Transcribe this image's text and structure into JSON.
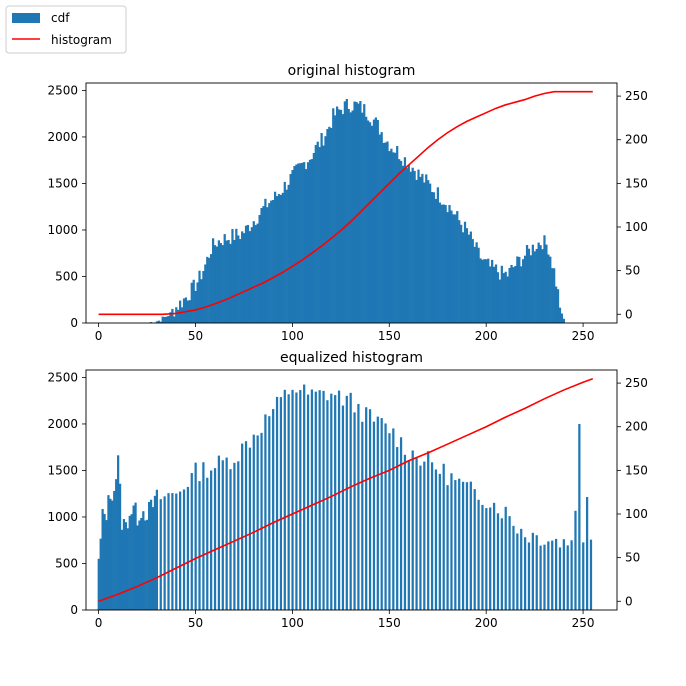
{
  "legend": {
    "placement": "figure-top-left",
    "entries": [
      {
        "label": "cdf",
        "color": "#1f77b4",
        "kind": "patch"
      },
      {
        "label": "histogram",
        "color": "#ff0000",
        "kind": "line"
      }
    ]
  },
  "chart_data": [
    {
      "type": "bar+line",
      "title": "original histogram",
      "xlim": [
        -6.5,
        267.5
      ],
      "ylim": [
        0,
        2580
      ],
      "y2lim": [
        -10,
        265
      ],
      "xticks": [
        0,
        50,
        100,
        150,
        200,
        250
      ],
      "yticks": [
        0,
        500,
        1000,
        1500,
        2000,
        2500
      ],
      "y2ticks": [
        0,
        50,
        100,
        150,
        200,
        250
      ],
      "bar_color": "#1f77b4",
      "line_color": "#ff0000",
      "bars": {
        "bin_width": 1,
        "mode": "dense",
        "anchor_points": [
          [
            0,
            0
          ],
          [
            25,
            0
          ],
          [
            28,
            10
          ],
          [
            31,
            25
          ],
          [
            34,
            60
          ],
          [
            37,
            100
          ],
          [
            40,
            170
          ],
          [
            43,
            230
          ],
          [
            46,
            300
          ],
          [
            49,
            380
          ],
          [
            52,
            480
          ],
          [
            55,
            620
          ],
          [
            58,
            800
          ],
          [
            61,
            870
          ],
          [
            64,
            900
          ],
          [
            67,
            920
          ],
          [
            70,
            940
          ],
          [
            73,
            950
          ],
          [
            76,
            1000
          ],
          [
            79,
            1080
          ],
          [
            82,
            1150
          ],
          [
            85,
            1230
          ],
          [
            88,
            1300
          ],
          [
            91,
            1350
          ],
          [
            94,
            1420
          ],
          [
            97,
            1500
          ],
          [
            100,
            1580
          ],
          [
            103,
            1650
          ],
          [
            106,
            1720
          ],
          [
            109,
            1780
          ],
          [
            112,
            1880
          ],
          [
            115,
            1960
          ],
          [
            118,
            2070
          ],
          [
            121,
            2220
          ],
          [
            124,
            2280
          ],
          [
            127,
            2330
          ],
          [
            130,
            2350
          ],
          [
            133,
            2340
          ],
          [
            136,
            2310
          ],
          [
            139,
            2260
          ],
          [
            142,
            2180
          ],
          [
            145,
            2090
          ],
          [
            148,
            1980
          ],
          [
            151,
            1900
          ],
          [
            154,
            1850
          ],
          [
            157,
            1780
          ],
          [
            160,
            1720
          ],
          [
            163,
            1650
          ],
          [
            166,
            1580
          ],
          [
            169,
            1520
          ],
          [
            172,
            1450
          ],
          [
            175,
            1390
          ],
          [
            178,
            1330
          ],
          [
            181,
            1250
          ],
          [
            184,
            1160
          ],
          [
            187,
            1070
          ],
          [
            190,
            990
          ],
          [
            193,
            870
          ],
          [
            196,
            740
          ],
          [
            199,
            650
          ],
          [
            202,
            600
          ],
          [
            205,
            570
          ],
          [
            208,
            530
          ],
          [
            211,
            520
          ],
          [
            214,
            600
          ],
          [
            217,
            670
          ],
          [
            220,
            730
          ],
          [
            223,
            790
          ],
          [
            226,
            850
          ],
          [
            229,
            880
          ],
          [
            232,
            820
          ],
          [
            235,
            560
          ],
          [
            237,
            320
          ],
          [
            239,
            80
          ],
          [
            241,
            0
          ],
          [
            255,
            0
          ]
        ],
        "jitter_amplitude": 90
      },
      "cdf_line": [
        [
          0,
          0
        ],
        [
          33,
          0
        ],
        [
          40,
          1
        ],
        [
          45,
          3
        ],
        [
          50,
          5
        ],
        [
          55,
          8
        ],
        [
          60,
          12
        ],
        [
          65,
          16
        ],
        [
          70,
          21
        ],
        [
          75,
          26
        ],
        [
          80,
          31
        ],
        [
          85,
          36
        ],
        [
          90,
          42
        ],
        [
          95,
          48
        ],
        [
          100,
          55
        ],
        [
          105,
          62
        ],
        [
          110,
          70
        ],
        [
          115,
          78
        ],
        [
          120,
          87
        ],
        [
          125,
          96
        ],
        [
          130,
          106
        ],
        [
          135,
          117
        ],
        [
          140,
          128
        ],
        [
          145,
          139
        ],
        [
          150,
          150
        ],
        [
          155,
          161
        ],
        [
          160,
          171
        ],
        [
          165,
          181
        ],
        [
          170,
          191
        ],
        [
          175,
          200
        ],
        [
          180,
          208
        ],
        [
          185,
          215
        ],
        [
          190,
          221
        ],
        [
          195,
          226
        ],
        [
          200,
          231
        ],
        [
          205,
          236
        ],
        [
          210,
          240
        ],
        [
          215,
          243
        ],
        [
          220,
          246
        ],
        [
          225,
          250
        ],
        [
          230,
          253
        ],
        [
          235,
          255
        ],
        [
          240,
          255
        ],
        [
          255,
          255
        ]
      ]
    },
    {
      "type": "bar+line",
      "title": "equalized histogram",
      "xlim": [
        -6.5,
        267.5
      ],
      "ylim": [
        0,
        2580
      ],
      "y2lim": [
        -10,
        265
      ],
      "xticks": [
        0,
        50,
        100,
        150,
        200,
        250
      ],
      "yticks": [
        0,
        500,
        1000,
        1500,
        2000,
        2500
      ],
      "y2ticks": [
        0,
        50,
        100,
        150,
        200,
        250
      ],
      "bar_color": "#1f77b4",
      "line_color": "#ff0000",
      "bars": {
        "bin_width": 1,
        "mode": "sparse",
        "dense_until": 30,
        "gap_pattern_after": 1,
        "anchor_points": [
          [
            0,
            500
          ],
          [
            2,
            1000
          ],
          [
            4,
            1050
          ],
          [
            6,
            1250
          ],
          [
            8,
            1300
          ],
          [
            10,
            1600
          ],
          [
            12,
            950
          ],
          [
            14,
            900
          ],
          [
            16,
            1050
          ],
          [
            18,
            1100
          ],
          [
            20,
            1000
          ],
          [
            22,
            1080
          ],
          [
            24,
            1050
          ],
          [
            26,
            1070
          ],
          [
            28,
            1130
          ],
          [
            30,
            1200
          ],
          [
            40,
            1250
          ],
          [
            50,
            1480
          ],
          [
            60,
            1550
          ],
          [
            70,
            1640
          ],
          [
            80,
            1880
          ],
          [
            90,
            2150
          ],
          [
            100,
            2400
          ],
          [
            110,
            2300
          ],
          [
            120,
            2330
          ],
          [
            130,
            2240
          ],
          [
            140,
            2060
          ],
          [
            150,
            1950
          ],
          [
            160,
            1700
          ],
          [
            170,
            1600
          ],
          [
            180,
            1450
          ],
          [
            190,
            1300
          ],
          [
            200,
            1200
          ],
          [
            210,
            1050
          ],
          [
            215,
            920
          ],
          [
            220,
            820
          ],
          [
            230,
            780
          ],
          [
            240,
            730
          ],
          [
            245,
            760
          ],
          [
            248,
            1950
          ],
          [
            250,
            700
          ],
          [
            252,
            1280
          ],
          [
            255,
            560
          ]
        ],
        "jitter_amplitude": 110
      },
      "cdf_line": [
        [
          0,
          0
        ],
        [
          10,
          8
        ],
        [
          20,
          17
        ],
        [
          30,
          27
        ],
        [
          40,
          38
        ],
        [
          50,
          49
        ],
        [
          60,
          59
        ],
        [
          70,
          69
        ],
        [
          80,
          79
        ],
        [
          90,
          90
        ],
        [
          100,
          100
        ],
        [
          110,
          110
        ],
        [
          120,
          120
        ],
        [
          130,
          131
        ],
        [
          140,
          141
        ],
        [
          150,
          150
        ],
        [
          160,
          161
        ],
        [
          170,
          170
        ],
        [
          180,
          180
        ],
        [
          190,
          190
        ],
        [
          200,
          200
        ],
        [
          210,
          211
        ],
        [
          220,
          221
        ],
        [
          230,
          232
        ],
        [
          240,
          242
        ],
        [
          250,
          251
        ],
        [
          255,
          255
        ]
      ]
    }
  ]
}
